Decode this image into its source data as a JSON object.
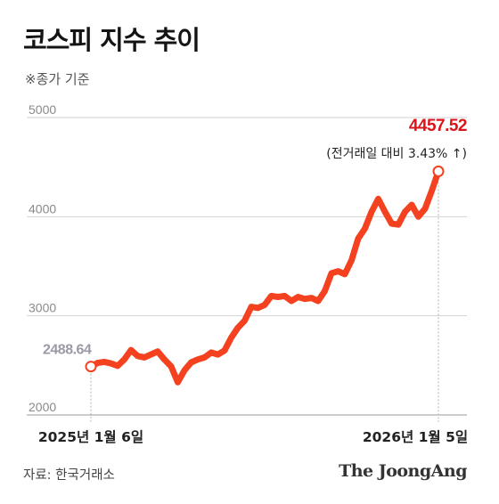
{
  "title": "코스피 지수 추이",
  "subtitle": "※종가 기준",
  "source": "자료: 한국거래소",
  "logo": "The JoongAng",
  "chart_data": {
    "type": "line",
    "title": "코스피 지수 추이",
    "ylim": [
      2000,
      5000
    ],
    "yticks": [
      "2000",
      "3000",
      "4000",
      "5000"
    ],
    "grid": true,
    "x_labels": [
      "2025년 1월 6일",
      "2026년 1월 5일"
    ],
    "start_label": "2488.64",
    "end_label": "4457.52",
    "end_note": "(전거래일 대비 3.43% ↑)",
    "line_color": "#f4411f",
    "end_color": "#d9151b",
    "start_color": "#9a9aa6",
    "series": [
      {
        "x": [
          "2025-01-06",
          "2025-01-13",
          "2025-01-20",
          "2025-01-27",
          "2025-02-03",
          "2025-02-10",
          "2025-02-17",
          "2025-02-24",
          "2025-03-03",
          "2025-03-10",
          "2025-03-17",
          "2025-03-24",
          "2025-03-31",
          "2025-04-07",
          "2025-04-14",
          "2025-04-21",
          "2025-04-28",
          "2025-05-05",
          "2025-05-12",
          "2025-05-19",
          "2025-05-26",
          "2025-06-02",
          "2025-06-09",
          "2025-06-16",
          "2025-06-23",
          "2025-06-30",
          "2025-07-07",
          "2025-07-14",
          "2025-07-21",
          "2025-07-28",
          "2025-08-04",
          "2025-08-11",
          "2025-08-18",
          "2025-08-25",
          "2025-09-01",
          "2025-09-08",
          "2025-09-15",
          "2025-09-22",
          "2025-09-29",
          "2025-10-06",
          "2025-10-13",
          "2025-10-20",
          "2025-10-27",
          "2025-11-03",
          "2025-11-10",
          "2025-11-17",
          "2025-11-24",
          "2025-12-01",
          "2025-12-08",
          "2025-12-15",
          "2025-12-22",
          "2025-12-29",
          "2026-01-05"
        ],
        "values": [
          2488.64,
          2525,
          2535,
          2520,
          2495,
          2560,
          2655,
          2595,
          2580,
          2610,
          2640,
          2560,
          2490,
          2330,
          2450,
          2530,
          2560,
          2580,
          2630,
          2610,
          2650,
          2780,
          2880,
          2950,
          3090,
          3080,
          3110,
          3200,
          3190,
          3200,
          3150,
          3190,
          3170,
          3180,
          3150,
          3250,
          3430,
          3450,
          3420,
          3560,
          3780,
          3880,
          4050,
          4180,
          4050,
          3930,
          3920,
          4050,
          4120,
          4000,
          4080,
          4260,
          4457.52
        ]
      }
    ]
  }
}
